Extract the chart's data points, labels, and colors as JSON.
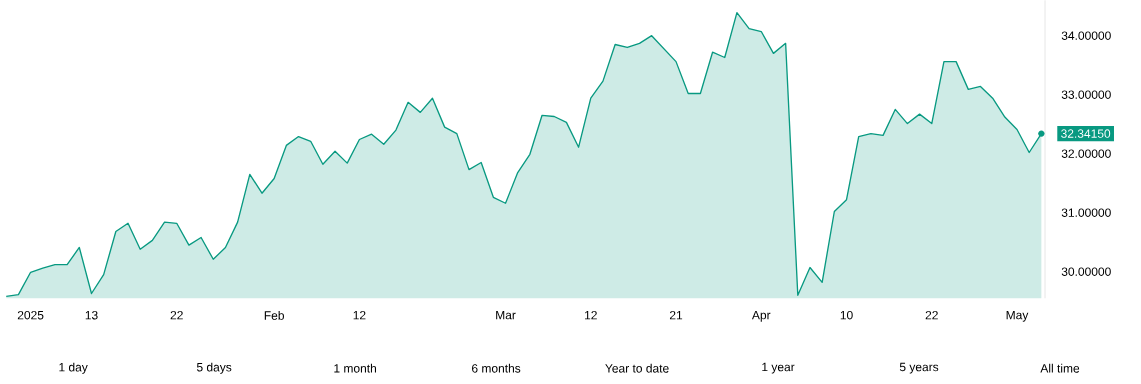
{
  "chart_data": {
    "type": "area",
    "categories": [
      null,
      null,
      "2025",
      null,
      null,
      null,
      null,
      "13",
      null,
      null,
      null,
      null,
      null,
      null,
      "22",
      null,
      null,
      null,
      null,
      null,
      null,
      null,
      "Feb",
      null,
      null,
      null,
      null,
      null,
      null,
      "12",
      null,
      null,
      null,
      null,
      null,
      null,
      null,
      null,
      null,
      null,
      null,
      "Mar",
      null,
      null,
      null,
      null,
      null,
      null,
      "12",
      null,
      null,
      null,
      null,
      null,
      null,
      "21",
      null,
      null,
      null,
      null,
      null,
      null,
      "Apr",
      null,
      null,
      null,
      null,
      null,
      null,
      "10",
      null,
      null,
      null,
      null,
      null,
      null,
      "22",
      null,
      null,
      null,
      null,
      null,
      null,
      "May",
      null,
      null
    ],
    "ylim": [
      29.55,
      34.6
    ],
    "series": [
      {
        "color": "#089981",
        "values": [
          29.58,
          29.61,
          29.99,
          30.06,
          30.12,
          30.12,
          30.41,
          29.63,
          29.95,
          30.68,
          30.82,
          30.38,
          30.53,
          30.84,
          30.82,
          30.45,
          30.58,
          30.21,
          30.41,
          30.84,
          31.65,
          31.33,
          31.58,
          32.14,
          32.29,
          32.21,
          31.82,
          32.04,
          31.84,
          32.24,
          32.33,
          32.16,
          32.4,
          32.87,
          32.7,
          32.94,
          32.45,
          32.34,
          31.73,
          31.85,
          31.26,
          31.16,
          31.68,
          31.99,
          32.65,
          32.63,
          32.53,
          32.11,
          32.94,
          33.23,
          33.85,
          33.8,
          33.87,
          34.0,
          33.78,
          33.56,
          33.02,
          33.02,
          33.72,
          33.63,
          34.39,
          34.12,
          34.07,
          33.7,
          33.87,
          29.6,
          30.07,
          29.82,
          31.02,
          31.22,
          32.29,
          32.34,
          32.31,
          32.75,
          32.51,
          32.67,
          32.51,
          33.56,
          33.56,
          33.09,
          33.14,
          32.94,
          32.62,
          32.41,
          32.02,
          32.34
        ]
      }
    ],
    "yticks": [
      {
        "value": 30,
        "label": "30.00000"
      },
      {
        "value": 31,
        "label": "31.00000"
      },
      {
        "value": 32,
        "label": "32.00000"
      },
      {
        "value": 33,
        "label": "33.00000"
      },
      {
        "value": 34,
        "label": "34.00000"
      }
    ],
    "annotations": [
      "32.34150",
      "1 day",
      "5 days",
      "1 month",
      "6 months",
      "Year to date",
      "1 year",
      "5 years",
      "All time"
    ]
  }
}
